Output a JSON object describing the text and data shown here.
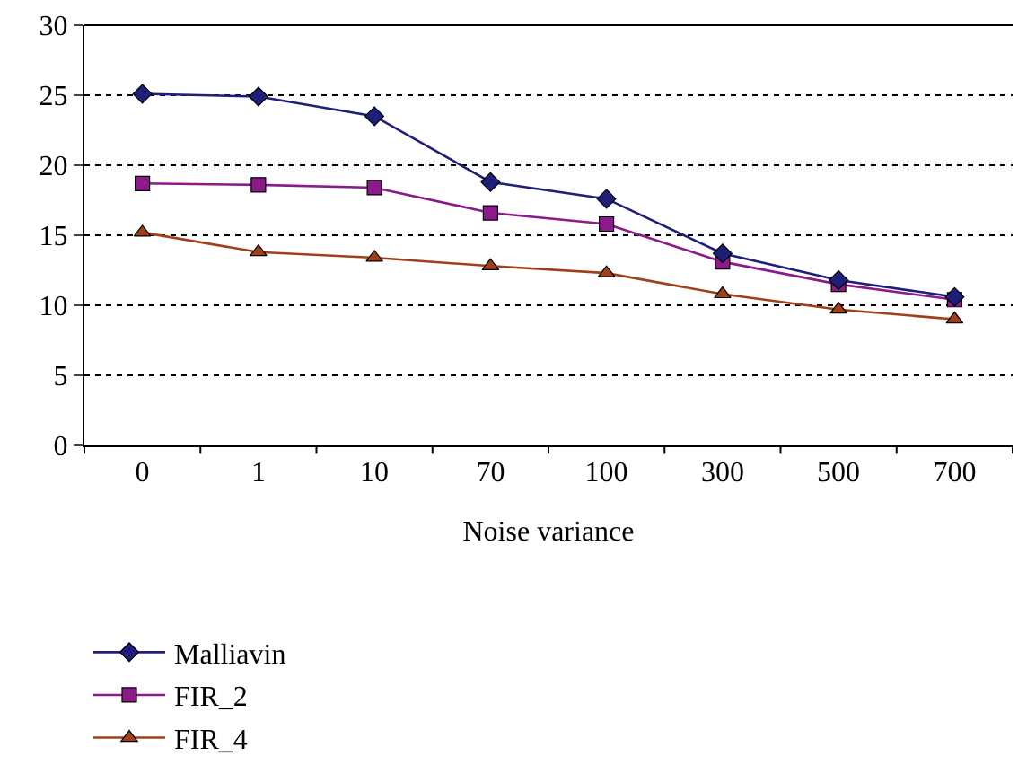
{
  "chart_data": {
    "type": "line",
    "xlabel": "Noise variance",
    "categories": [
      "0",
      "1",
      "10",
      "70",
      "100",
      "300",
      "500",
      "700"
    ],
    "series": [
      {
        "name": "Malliavin",
        "color": "#1f1f7a",
        "marker": "diamond",
        "values": [
          25.1,
          24.9,
          23.5,
          18.8,
          17.6,
          13.7,
          11.8,
          10.6
        ]
      },
      {
        "name": "FIR_2",
        "color": "#8b1a8b",
        "marker": "square",
        "values": [
          18.7,
          18.6,
          18.4,
          16.6,
          15.8,
          13.1,
          11.5,
          10.4
        ]
      },
      {
        "name": "FIR_4",
        "color": "#a0401a",
        "marker": "triangle",
        "values": [
          15.2,
          13.8,
          13.4,
          12.8,
          12.3,
          10.8,
          9.7,
          9.0
        ]
      }
    ],
    "ylim": [
      0,
      30
    ],
    "yticks": [
      0,
      5,
      10,
      15,
      20,
      25,
      30
    ],
    "grid": "y",
    "legend": "bottom",
    "line_style": "solid"
  }
}
